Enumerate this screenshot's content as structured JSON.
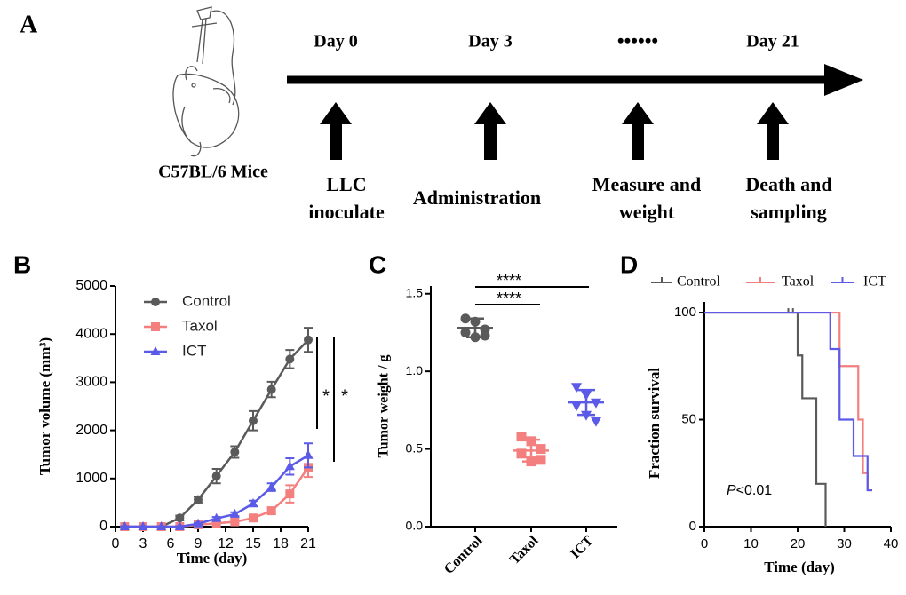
{
  "panel_labels": [
    "A",
    "B",
    "C",
    "D"
  ],
  "schema": {
    "mouse_label": "C57BL/6 Mice",
    "days": [
      "Day 0",
      "Day 3",
      "••••••",
      "Day 21"
    ],
    "steps": [
      [
        "LLC",
        "inoculate"
      ],
      [
        "Administration"
      ],
      [
        "Measure and",
        "weight"
      ],
      [
        "Death and",
        "sampling"
      ]
    ]
  },
  "chart_data": [
    {
      "type": "line",
      "xlabel": "Time (day)",
      "ylabel": "Tumor volume (mm³)",
      "x": [
        1,
        3,
        5,
        7,
        9,
        11,
        13,
        15,
        17,
        19,
        21
      ],
      "xlim": [
        0,
        21
      ],
      "xticks": [
        0,
        3,
        6,
        9,
        12,
        15,
        18,
        21
      ],
      "ylim": [
        0,
        5000
      ],
      "yticks": [
        0,
        1000,
        2000,
        3000,
        4000,
        5000
      ],
      "series": [
        {
          "name": "Control",
          "color": "#5a5a5a",
          "marker": "circle",
          "values": [
            0,
            0,
            0,
            180,
            560,
            1050,
            1550,
            2200,
            2850,
            3480,
            3880
          ],
          "errors": [
            20,
            20,
            20,
            50,
            60,
            150,
            120,
            200,
            160,
            190,
            250
          ]
        },
        {
          "name": "Taxol",
          "color": "#f47f7f",
          "marker": "square",
          "values": [
            0,
            0,
            0,
            0,
            40,
            70,
            100,
            180,
            330,
            680,
            1230
          ],
          "errors": [
            10,
            10,
            10,
            10,
            20,
            20,
            30,
            40,
            60,
            180,
            200
          ]
        },
        {
          "name": "ICT",
          "color": "#5b5be8",
          "marker": "triangle",
          "values": [
            0,
            0,
            0,
            0,
            60,
            170,
            260,
            480,
            820,
            1250,
            1480
          ],
          "errors": [
            10,
            10,
            10,
            10,
            20,
            30,
            40,
            60,
            80,
            170,
            250
          ]
        }
      ],
      "annotations": [
        "*",
        "*"
      ]
    },
    {
      "type": "dot",
      "ylabel": "Tumor weight / g",
      "categories": [
        "Control",
        "Taxol",
        "ICT"
      ],
      "colors": [
        "#5a5a5a",
        "#f47f7f",
        "#5b5be8"
      ],
      "markers": [
        "circle",
        "square",
        "triangle-down"
      ],
      "values": [
        [
          1.34,
          1.32,
          1.27,
          1.25,
          1.22,
          1.23
        ],
        [
          0.58,
          0.55,
          0.5,
          0.47,
          0.42,
          0.43
        ],
        [
          0.9,
          0.85,
          0.8,
          0.78,
          0.72,
          0.68
        ]
      ],
      "means": [
        1.28,
        0.49,
        0.8
      ],
      "sds": [
        0.06,
        0.07,
        0.08
      ],
      "ylim": [
        0,
        1.55
      ],
      "yticks": [
        {
          "value": 0,
          "label": "0.0"
        },
        0.5,
        {
          "value": 1,
          "label": "1.0"
        },
        1.5
      ],
      "annotations": [
        "****",
        "****"
      ]
    },
    {
      "type": "survival",
      "xlabel": "Time (day)",
      "ylabel": "Fraction survival",
      "xlim": [
        0,
        40
      ],
      "xticks": [
        0,
        10,
        20,
        30,
        40
      ],
      "ylim": [
        0,
        105
      ],
      "yticks": [
        0,
        50,
        100
      ],
      "series": [
        {
          "name": "Control",
          "color": "#5a5a5a",
          "x": [
            0,
            20,
            21,
            24,
            26
          ],
          "values": [
            100,
            80,
            60,
            20,
            0
          ],
          "censored_x": [
            18,
            19
          ],
          "censored_values": [
            100,
            100
          ]
        },
        {
          "name": "Taxol",
          "color": "#f47f7f",
          "x": [
            0,
            29,
            33,
            34,
            35,
            36
          ],
          "values": [
            100,
            75,
            50,
            25,
            17,
            17
          ]
        },
        {
          "name": "ICT",
          "color": "#5b5be8",
          "x": [
            0,
            27,
            29,
            32,
            35,
            36
          ],
          "values": [
            100,
            83,
            50,
            33,
            17,
            17
          ]
        }
      ],
      "annotation_italic": "P",
      "annotation": "<0.01"
    }
  ]
}
